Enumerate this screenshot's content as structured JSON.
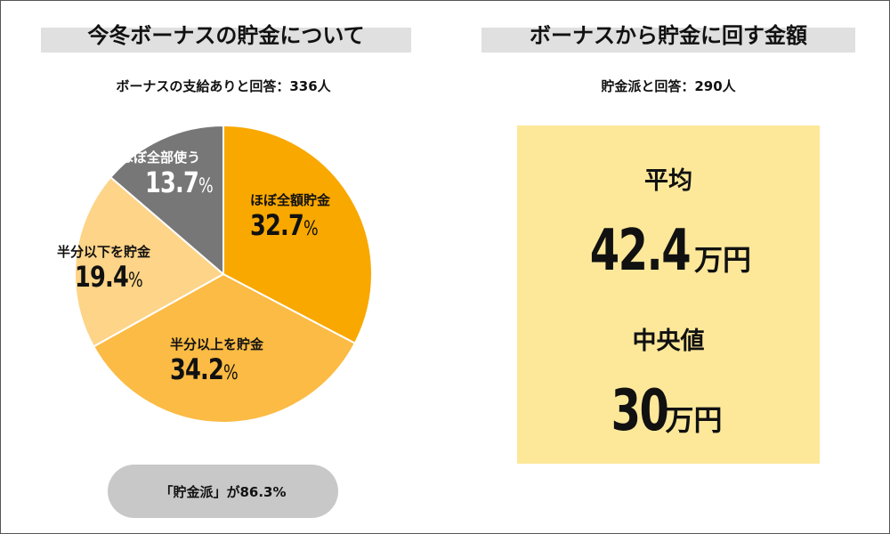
{
  "left_panel": {
    "heading": "今冬ボーナスの貯金について",
    "subheading": "ボーナスの支給ありと回答：336人",
    "pill_text": "「貯金派」が86.3%"
  },
  "right_panel": {
    "heading": "ボーナスから貯金に回す金額",
    "subheading": "貯金派と回答：290人",
    "average_label": "平均",
    "average_value": "42.4",
    "average_unit": "万円",
    "median_label": "中央値",
    "median_value": "30",
    "median_unit": "万円"
  },
  "chart_data": {
    "type": "pie",
    "slices": [
      {
        "label": "ほぼ全額貯金",
        "pct_text": "32.7",
        "unit": "%",
        "value": 32.7,
        "color": "#f9a800",
        "label_color": "#111111"
      },
      {
        "label": "半分以上を貯金",
        "pct_text": "34.2",
        "unit": "%",
        "value": 34.2,
        "color": "#fbbb44",
        "label_color": "#111111"
      },
      {
        "label": "半分以下を貯金",
        "pct_text": "19.4",
        "unit": "%",
        "value": 19.4,
        "color": "#fdd488",
        "label_color": "#111111"
      },
      {
        "label": "ほぼ全部使う",
        "pct_text": "13.7",
        "unit": "%",
        "value": 13.7,
        "color": "#777777",
        "label_color": "#ffffff"
      }
    ]
  }
}
